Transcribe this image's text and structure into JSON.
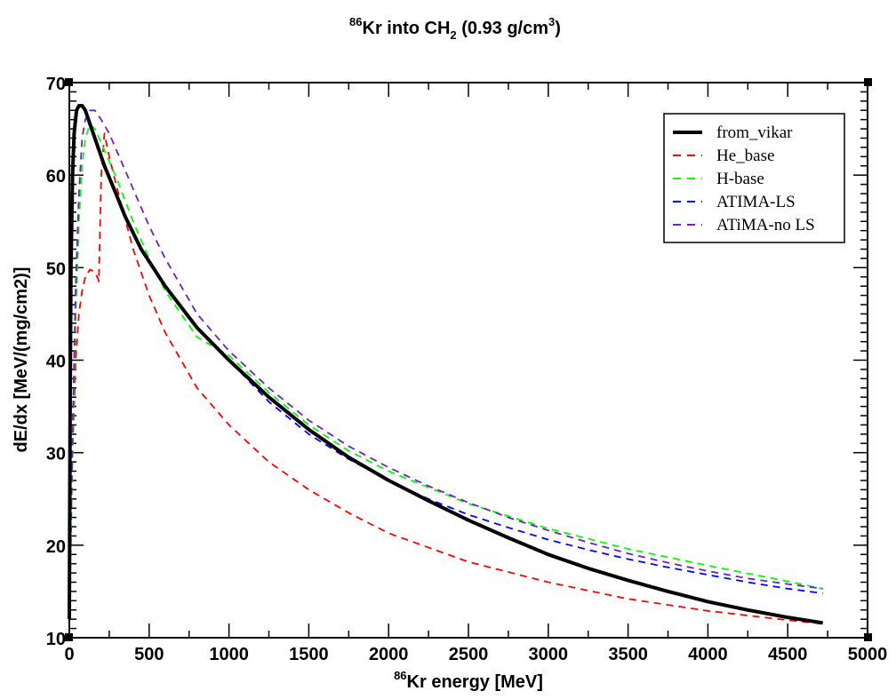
{
  "chart_data": {
    "type": "line",
    "title": {
      "mass_number": "86",
      "prefix": "Kr into CH",
      "subscript": "2",
      "middle": " (0.93 g/cm",
      "superscript": "3",
      "suffix": ")"
    },
    "xlabel": {
      "mass_number": "86",
      "text": "Kr energy [MeV]"
    },
    "ylabel": "dE/dx [MeV/(mg/cm2)]",
    "xlim": [
      0,
      5000
    ],
    "ylim": [
      10,
      70
    ],
    "xticks": [
      "0",
      "500",
      "1000",
      "1500",
      "2000",
      "2500",
      "3000",
      "3500",
      "4000",
      "4500",
      "5000"
    ],
    "yticks": [
      "10",
      "20",
      "30",
      "40",
      "50",
      "60",
      "70"
    ],
    "grid": false,
    "legend_position": "top-right",
    "series": [
      {
        "name": "from_vikar",
        "color": "#000000",
        "style": "solid",
        "x": [
          0,
          5,
          10,
          20,
          30,
          45,
          60,
          80,
          100,
          130,
          170,
          220,
          280,
          350,
          450,
          600,
          800,
          1000,
          1250,
          1500,
          1750,
          2000,
          2250,
          2500,
          2750,
          3000,
          3250,
          3500,
          3750,
          4000,
          4250,
          4500,
          4720
        ],
        "y": [
          12,
          35,
          50,
          60,
          64.5,
          67,
          67.5,
          67.5,
          67,
          65.5,
          63.5,
          61,
          58.5,
          55.5,
          52,
          48,
          43.5,
          40,
          36,
          32.5,
          29.5,
          27,
          24.8,
          22.7,
          20.8,
          19,
          17.5,
          16.2,
          15,
          13.9,
          13,
          12.2,
          11.6
        ]
      },
      {
        "name": "He_base",
        "color": "#ff0000",
        "style": "dashed",
        "x": [
          0,
          10,
          20,
          40,
          60,
          80,
          100,
          130,
          160,
          180,
          185,
          200,
          220,
          250,
          300,
          400,
          500,
          600,
          800,
          1000,
          1250,
          1500,
          1750,
          2000,
          2500,
          3000,
          3500,
          4000,
          4500,
          4720
        ],
        "y": [
          12,
          22,
          30,
          40,
          45,
          47.5,
          49,
          49.8,
          49.5,
          48.8,
          48.5,
          60,
          64.5,
          62,
          58.5,
          52,
          47,
          43,
          37,
          33,
          29,
          26,
          23.5,
          21.3,
          18.2,
          16,
          14.2,
          12.9,
          11.9,
          11.5
        ]
      },
      {
        "name": "H-base",
        "color": "#00ff00",
        "style": "dashed",
        "x": [
          0,
          10,
          20,
          40,
          60,
          80,
          100,
          130,
          160,
          200,
          250,
          300,
          400,
          500,
          600,
          800,
          900,
          1000,
          1250,
          1500,
          1750,
          2000,
          2500,
          3000,
          3500,
          4000,
          4500,
          4720
        ],
        "y": [
          12,
          20,
          30,
          45,
          55,
          61,
          64,
          65.5,
          65,
          63.5,
          61.5,
          59.5,
          55,
          51,
          47.5,
          42.5,
          41.5,
          40.5,
          36.5,
          33,
          30.2,
          28,
          24.5,
          21.8,
          19.6,
          17.8,
          16.1,
          15.3
        ]
      },
      {
        "name": "ATIMA-LS",
        "color": "#0000ff",
        "style": "dashed",
        "x": [
          800,
          1000,
          1250,
          1500,
          1750,
          2000,
          2250,
          2500,
          2750,
          3000,
          3250,
          3500,
          3750,
          4000,
          4250,
          4500,
          4720
        ],
        "y": [
          43.5,
          40,
          35.5,
          32,
          29.3,
          27,
          25,
          23.3,
          21.9,
          20.6,
          19.5,
          18.5,
          17.6,
          16.8,
          16,
          15.3,
          14.8
        ]
      },
      {
        "name": "ATiMA-no LS",
        "color": "#7020c0",
        "style": "dashed",
        "x": [
          0,
          10,
          20,
          40,
          60,
          80,
          100,
          130,
          160,
          200,
          250,
          300,
          400,
          500,
          600,
          800,
          1000,
          1250,
          1500,
          1750,
          2000,
          2250,
          2500,
          2750,
          3000,
          3250,
          3500,
          3750,
          4000,
          4250,
          4500,
          4720
        ],
        "y": [
          12,
          22,
          32,
          48,
          58,
          64,
          66,
          67,
          67,
          66,
          64.5,
          62.5,
          58.5,
          54.5,
          51,
          45,
          41,
          37,
          33.5,
          30.7,
          28.4,
          26.4,
          24.6,
          23,
          21.6,
          20.3,
          19.1,
          18.1,
          17.2,
          16.4,
          15.8,
          15.3
        ]
      }
    ]
  }
}
